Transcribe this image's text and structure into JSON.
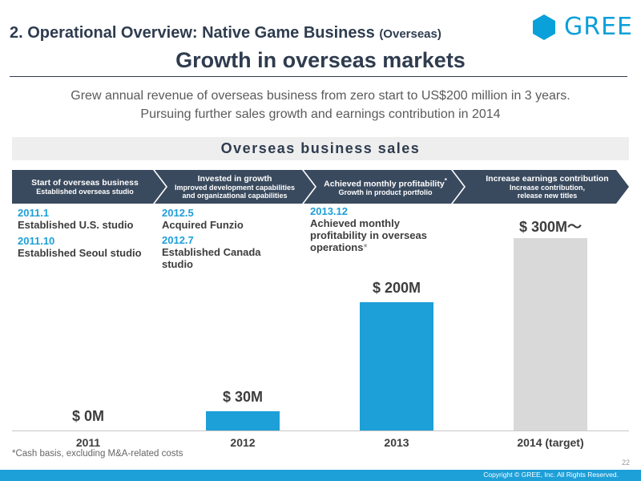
{
  "header": {
    "section_title": "2. Operational Overview: Native Game Business",
    "section_sub": "(Overseas)",
    "logo_text": "GREE",
    "main_title": "Growth in overseas markets"
  },
  "intro": {
    "line1": "Grew annual revenue of overseas business from zero start to US$200 million in 3 years.",
    "line2": "Pursuing further sales growth and earnings contribution in 2014"
  },
  "banner": {
    "title": "Overseas business sales"
  },
  "phases": [
    {
      "title": "Start of overseas business",
      "sub": "Established overseas studio"
    },
    {
      "title": "Invested in growth",
      "sub": "Improved development capabilities\nand organizational capabilities"
    },
    {
      "title": "Achieved monthly profitability",
      "title_mark": "*",
      "sub": "Growth in product portfolio"
    },
    {
      "title": "Increase earnings contribution",
      "sub": "Increase contribution,\nrelease new titles"
    }
  ],
  "events": [
    {
      "date": "2011.1",
      "desc": "Established U.S. studio"
    },
    {
      "date": "2011.10",
      "desc": "Established Seoul studio"
    },
    {
      "date": "2012.5",
      "desc": "Acquired Funzio"
    },
    {
      "date": "2012.7",
      "desc": "Established Canada\nstudio"
    },
    {
      "date": "2013.12",
      "desc": "Achieved monthly\nprofitability in overseas\noperations",
      "mark": "*"
    }
  ],
  "chart_data": {
    "type": "bar",
    "title": "Overseas business sales",
    "categories": [
      "2011",
      "2012",
      "2013",
      "2014 (target)"
    ],
    "values": [
      0,
      30,
      200,
      300
    ],
    "value_labels": [
      "$ 0M",
      "$ 30M",
      "$ 200M",
      "$ 300M～"
    ],
    "unit": "US$ millions",
    "ylim": [
      0,
      300
    ],
    "series_colors": [
      "#1d9fd8",
      "#1d9fd8",
      "#1d9fd8",
      "#d9d9d9"
    ]
  },
  "footer": {
    "footnote": "*Cash basis, excluding M&A-related costs",
    "page_number": "22",
    "copyright": "Copyright © GREE, Inc. All Rights Reserved."
  },
  "colors": {
    "brand": "#1d9fd8",
    "navy": "#2f3c4f",
    "phase_fill": "#3a4a5e"
  }
}
